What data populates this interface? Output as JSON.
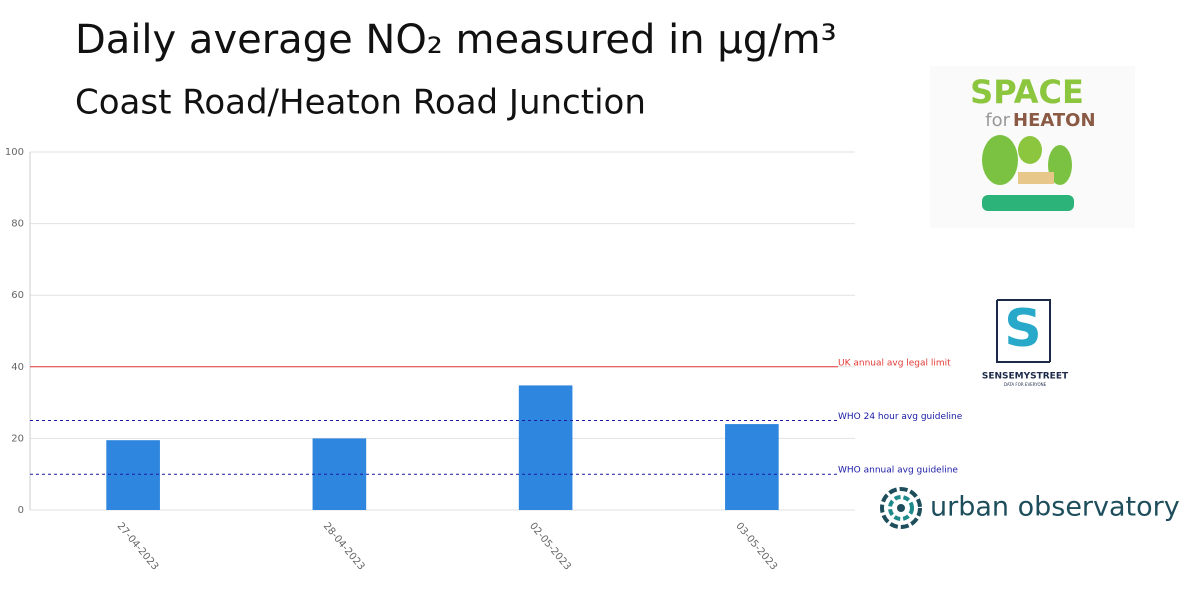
{
  "chart_data": {
    "type": "bar",
    "title": "Daily average NO₂ measured in µg/m³",
    "subtitle": "Coast Road/Heaton Road Junction",
    "categories": [
      "27-04-2023",
      "28-04-2023",
      "02-05-2023",
      "03-05-2023"
    ],
    "values": [
      19.5,
      20,
      34.8,
      24
    ],
    "color": "#2e86de",
    "ylim": [
      0,
      100
    ],
    "yticks": [
      0,
      20,
      40,
      60,
      80,
      100
    ],
    "grid": true,
    "annotations": [
      {
        "value": 40,
        "label": "UK annual avg legal limit",
        "color": "#e53935",
        "dash": false
      },
      {
        "value": 25,
        "label": "WHO 24 hour avg guideline",
        "color": "#1a1aa6",
        "dash": true
      },
      {
        "value": 10,
        "label": "WHO annual avg guideline",
        "color": "#1a1aa6",
        "dash": true
      }
    ]
  },
  "logos": {
    "space_for_heaton": {
      "line1": "SPACE",
      "line2a": "for",
      "line2b": "HEATON"
    },
    "sensemystreet": {
      "name": "SENSEMYSTREET",
      "tagline": "DATA FOR EVERYONE"
    },
    "urban_observatory": {
      "name": "urban observatory"
    }
  }
}
